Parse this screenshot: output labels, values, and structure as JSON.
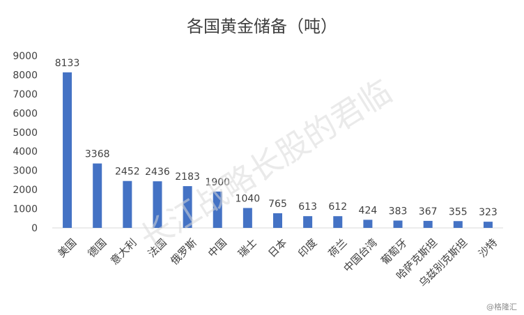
{
  "chart_data": {
    "type": "bar",
    "title": "各国黄金储备（吨）",
    "xlabel": "",
    "ylabel": "",
    "categories": [
      "美国",
      "德国",
      "意大利",
      "法国",
      "俄罗斯",
      "中国",
      "瑞士",
      "日本",
      "印度",
      "荷兰",
      "中国台湾",
      "葡萄牙",
      "哈萨克斯坦",
      "乌兹别克斯坦",
      "沙特"
    ],
    "values": [
      8133,
      3368,
      2452,
      2436,
      2183,
      1900,
      1040,
      765,
      613,
      612,
      424,
      383,
      367,
      355,
      323
    ],
    "ylim": [
      0,
      9000
    ],
    "yticks": [
      0,
      1000,
      2000,
      3000,
      4000,
      5000,
      6000,
      7000,
      8000,
      9000
    ],
    "grid": false,
    "legend": "none",
    "bar_color": "#4472c4"
  },
  "watermark": "长江战略长股的君临",
  "source_mark": "@格隆汇"
}
